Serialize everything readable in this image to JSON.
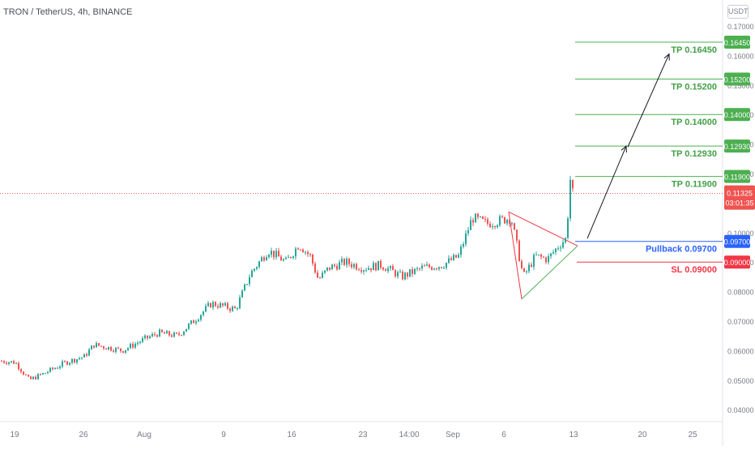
{
  "header": {
    "symbol": "TRON / TetherUS, 4h, BINANCE",
    "unit": "USDT"
  },
  "colors": {
    "up": "#26a69a",
    "down": "#ef5350",
    "tp_line": "#4caf50",
    "tp_text": "#43a047",
    "pullback": "#2962ff",
    "sl": "#f23645",
    "grid": "#f0f3fa",
    "axis_text": "#787b86",
    "triangle_green": "#4caf50",
    "triangle_red": "#f23645"
  },
  "chart_data": {
    "type": "candlestick",
    "title": "TRON / TetherUS, 4h, BINANCE",
    "y_unit": "USDT",
    "ylim": [
      0.036,
      0.176
    ],
    "y_ticks": [
      "0.17000",
      "0.16000",
      "0.15000",
      "0.14000",
      "0.13000",
      "0.12000",
      "0.11000",
      "0.10000",
      "0.09000",
      "0.08000",
      "0.07000",
      "0.06000",
      "0.05000",
      "0.04000"
    ],
    "x_ticks": [
      "19",
      "26",
      "Aug",
      "9",
      "16",
      "23",
      "14:00",
      "Sep",
      "6",
      "13",
      "20",
      "25"
    ],
    "price_path": [
      [
        "19",
        0.0565
      ],
      [
        "20",
        0.056
      ],
      [
        "21",
        0.05
      ],
      [
        "22",
        0.0525
      ],
      [
        "24",
        0.056
      ],
      [
        "26",
        0.058
      ],
      [
        "27",
        0.062
      ],
      [
        "29",
        0.06
      ],
      [
        "Aug",
        0.064
      ],
      [
        "Aug+2",
        0.066
      ],
      [
        "Aug+4",
        0.065
      ],
      [
        "Aug+6",
        0.07
      ],
      [
        "Aug+8",
        0.076
      ],
      [
        "9",
        0.074
      ],
      [
        "10",
        0.086
      ],
      [
        "11",
        0.094
      ],
      [
        "13",
        0.09
      ],
      [
        "14",
        0.094
      ],
      [
        "15",
        0.096
      ],
      [
        "16",
        0.092
      ],
      [
        "17",
        0.084
      ],
      [
        "19",
        0.088
      ],
      [
        "20",
        0.09
      ],
      [
        "22",
        0.089
      ],
      [
        "23",
        0.088
      ],
      [
        "14:00",
        0.085
      ],
      [
        "Aug 28",
        0.088
      ],
      [
        "Aug 30",
        0.089
      ],
      [
        "Sep",
        0.092
      ],
      [
        "Sep 2",
        0.105
      ],
      [
        "Sep 4",
        0.103
      ],
      [
        "6",
        0.105
      ],
      [
        "Sep 7",
        0.085
      ],
      [
        "Sep 8",
        0.092
      ],
      [
        "Sep 10",
        0.091
      ],
      [
        "Sep 11",
        0.096
      ],
      [
        "Sep 12",
        0.098
      ],
      [
        "13",
        0.118
      ],
      [
        "13+",
        0.1133
      ]
    ],
    "last_price": "0.11325",
    "countdown": "03:01:35",
    "levels": [
      {
        "label": "TP 0.16450",
        "value": 0.1645,
        "tag": "0.16450",
        "kind": "tp"
      },
      {
        "label": "TP 0.15200",
        "value": 0.152,
        "tag": "0.15200",
        "kind": "tp"
      },
      {
        "label": "TP 0.14000",
        "value": 0.14,
        "tag": "0.14000",
        "kind": "tp"
      },
      {
        "label": "TP 0.12930",
        "value": 0.1293,
        "tag": "0.12930",
        "kind": "tp"
      },
      {
        "label": "TP 0.11900",
        "value": 0.119,
        "tag": "0.11900",
        "kind": "tp"
      },
      {
        "label": "Pullback 0.09700",
        "value": 0.097,
        "tag": "0.09700",
        "kind": "pullback"
      },
      {
        "label": "SL 0.09000",
        "value": 0.09,
        "tag": "0.09000",
        "kind": "sl"
      }
    ],
    "annotations": [
      {
        "type": "triangle",
        "apex_value": 0.0955
      },
      {
        "type": "arrow",
        "from_value": 0.098,
        "to_value": 0.129
      },
      {
        "type": "arrow",
        "from_value": 0.129,
        "to_value": 0.1605
      }
    ],
    "grid": false
  }
}
